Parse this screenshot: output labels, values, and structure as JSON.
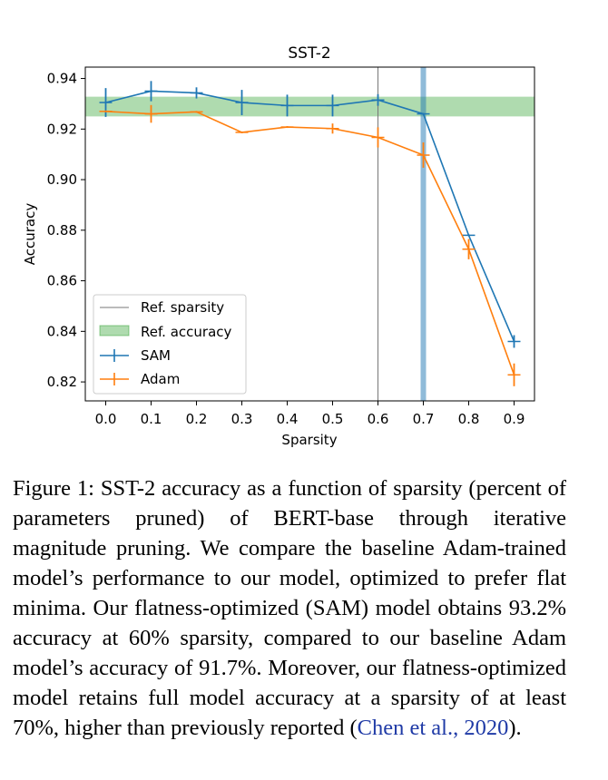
{
  "chart_data": {
    "type": "line",
    "title": "SST-2",
    "xlabel": "Sparsity",
    "ylabel": "Accuracy",
    "xlim": [
      -0.045,
      0.945
    ],
    "ylim": [
      0.8125,
      0.9445
    ],
    "xticks": [
      "0.0",
      "0.1",
      "0.2",
      "0.3",
      "0.4",
      "0.5",
      "0.6",
      "0.7",
      "0.8",
      "0.9"
    ],
    "yticks": [
      "0.82",
      "0.84",
      "0.86",
      "0.88",
      "0.90",
      "0.92",
      "0.94"
    ],
    "x": [
      0.0,
      0.1,
      0.2,
      0.3,
      0.4,
      0.5,
      0.6,
      0.7,
      0.8,
      0.9
    ],
    "series": [
      {
        "name": "SAM",
        "color": "#1f77b4",
        "values": [
          0.9305,
          0.935,
          0.9343,
          0.9305,
          0.9293,
          0.9293,
          0.9315,
          0.926,
          0.878,
          0.836
        ],
        "errors": [
          0.0057,
          0.004,
          0.0022,
          0.005,
          0.0043,
          0.0043,
          0.0023,
          0.0,
          0.0,
          0.0025
        ]
      },
      {
        "name": "Adam",
        "color": "#ff7f0e",
        "values": [
          0.927,
          0.926,
          0.9268,
          0.9187,
          0.9208,
          0.9202,
          0.9167,
          0.9097,
          0.8725,
          0.8228
        ],
        "errors": [
          0.0,
          0.0035,
          0.0,
          0.0,
          0.0,
          0.002,
          0.004,
          0.005,
          0.004,
          0.0045
        ]
      }
    ],
    "ref_sparsity": {
      "label": "Ref. sparsity",
      "x": 0.6,
      "color": "#777777"
    },
    "ref_accuracy": {
      "label": "Ref. accuracy",
      "y_range": [
        0.925,
        0.9328
      ],
      "color": "#2ca02c"
    },
    "highlight_x": {
      "x": 0.7,
      "color": "#1f77b4"
    },
    "legend_position": "lower-left"
  },
  "caption": {
    "text": "Figure 1: SST-2 accuracy as a function of sparsity (percent of parameters pruned) of BERT-base through iterative magnitude pruning. We compare the baseline Adam-trained model’s performance to our model, optimized to prefer flat minima. Our flatness-optimized (SAM) model obtains 93.2% accuracy at 60% sparsity, compared to our baseline Adam model’s accuracy of 91.7%. Moreover, our flatness-optimized model retains full model accuracy at a sparsity of at least 70%, higher than previously reported (",
    "citation": "Chen et al., 2020",
    "end": ")."
  }
}
